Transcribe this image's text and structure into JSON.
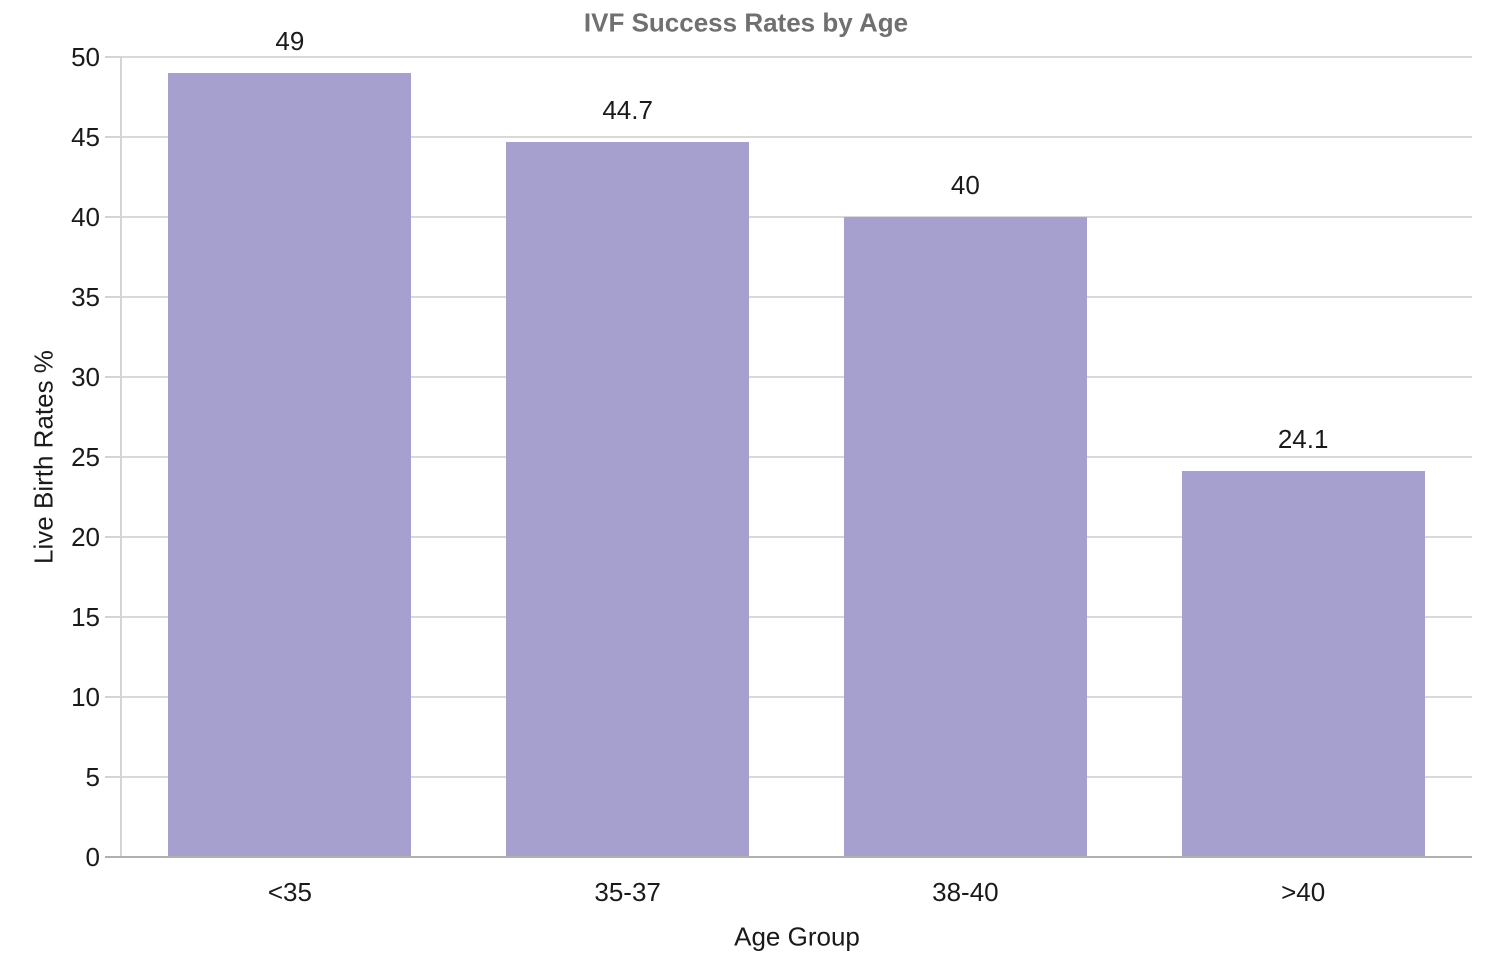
{
  "chart_data": {
    "type": "bar",
    "title": "IVF Success Rates by Age",
    "xlabel": "Age Group",
    "ylabel": "Live Birth Rates %",
    "categories": [
      "<35",
      "35-37",
      "38-40",
      ">40"
    ],
    "values": [
      49,
      44.7,
      40,
      24.1
    ],
    "value_labels": [
      "49",
      "44.7",
      "40",
      "24.1"
    ],
    "ylim": [
      0,
      50
    ],
    "yticks": [
      0,
      5,
      10,
      15,
      20,
      25,
      30,
      35,
      40,
      45,
      50
    ],
    "grid": "horizontal-only",
    "legend": "none",
    "colors": {
      "bar_fill": "#a6a0ce",
      "gridline": "#d9d9d9",
      "axis_line": "#d4d4d4",
      "zero_line": "#b0b0b0",
      "title_text": "#707070",
      "label_text": "#1a1a1a",
      "background": "#ffffff"
    }
  }
}
